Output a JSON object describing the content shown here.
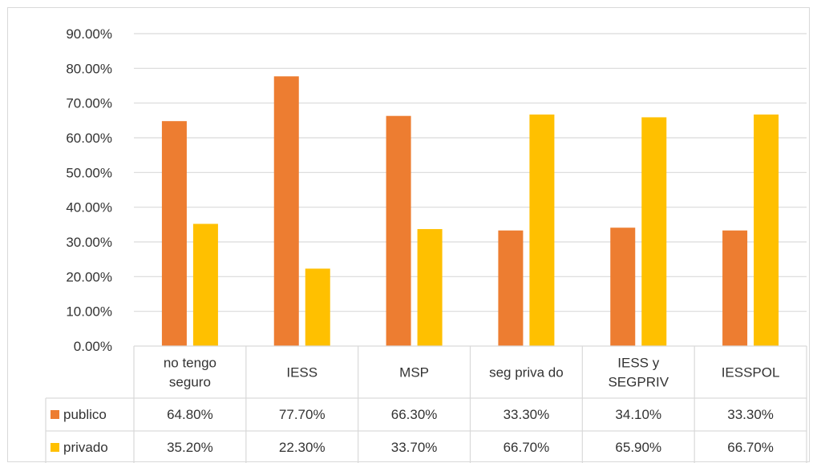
{
  "chart_data": {
    "type": "bar",
    "categories": [
      [
        "no tengo",
        "seguro"
      ],
      [
        "IESS"
      ],
      [
        "MSP"
      ],
      [
        "seg priva do"
      ],
      [
        "IESS y",
        "SEGPRIV"
      ],
      [
        "IESSPOL"
      ]
    ],
    "series": [
      {
        "name": "publico",
        "color": "#ED7D31",
        "values": [
          64.8,
          77.7,
          66.3,
          33.3,
          34.1,
          33.3
        ],
        "labels": [
          "64.80%",
          "77.70%",
          "66.30%",
          "33.30%",
          "34.10%",
          "33.30%"
        ]
      },
      {
        "name": "privado",
        "color": "#FFC000",
        "values": [
          35.2,
          22.3,
          33.7,
          66.7,
          65.9,
          66.7
        ],
        "labels": [
          "35.20%",
          "22.30%",
          "33.70%",
          "66.70%",
          "65.90%",
          "66.70%"
        ]
      }
    ],
    "yticks": [
      "0.00%",
      "10.00%",
      "20.00%",
      "30.00%",
      "40.00%",
      "50.00%",
      "60.00%",
      "70.00%",
      "80.00%",
      "90.00%"
    ],
    "ylim": [
      0,
      90
    ],
    "grid": true,
    "legend": "data-table"
  }
}
